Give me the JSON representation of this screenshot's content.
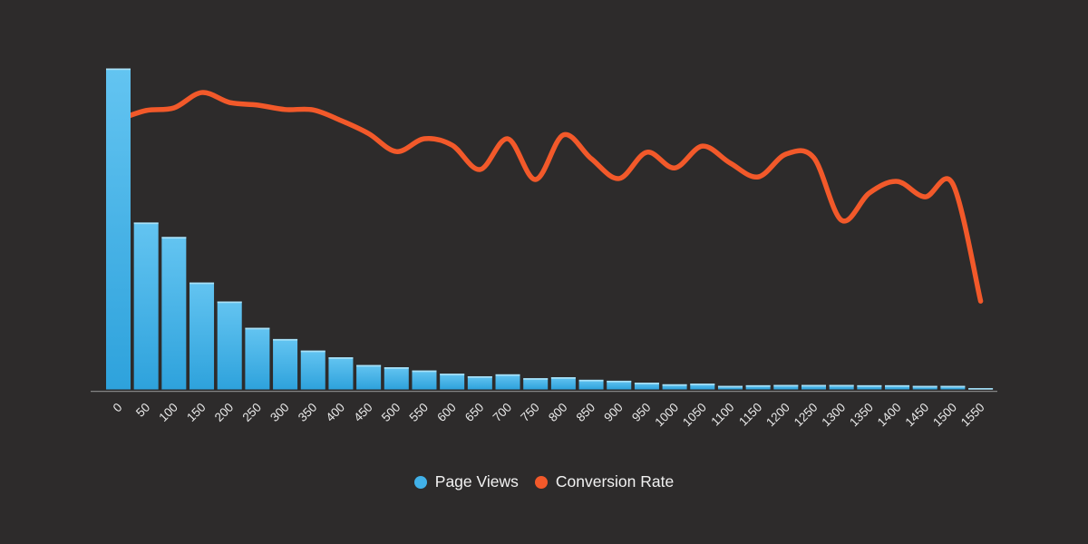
{
  "chart_data": {
    "type": "combo",
    "title": "",
    "xlabel": "",
    "ylabel": "",
    "grid": false,
    "y_axis_visible": false,
    "legend_position": "bottom",
    "ylim": [
      0,
      105
    ],
    "background": "#2d2b2b",
    "axis_line_color": "#939393",
    "tick_label_color": "#e8e8e8",
    "legend_text_color": "#f2f2f2",
    "bar_gradient_top": "#63c4f1",
    "bar_gradient_bottom": "#2ea2dc",
    "bar_cap_color": "#b5e6f9",
    "categories": [
      "0",
      "50",
      "100",
      "150",
      "200",
      "250",
      "300",
      "350",
      "400",
      "450",
      "500",
      "550",
      "600",
      "650",
      "700",
      "750",
      "800",
      "850",
      "900",
      "950",
      "1000",
      "1050",
      "1100",
      "1150",
      "1200",
      "1250",
      "1300",
      "1350",
      "1400",
      "1450",
      "1500",
      "1550"
    ],
    "series": [
      {
        "name": "Page Views",
        "type": "bar",
        "color": "#41b1e8",
        "values": [
          100,
          52,
          47.5,
          33.3,
          27.4,
          19.2,
          15.7,
          12.1,
          10,
          7.6,
          6.9,
          5.9,
          4.9,
          4.1,
          4.7,
          3.5,
          3.8,
          3.0,
          2.7,
          2.1,
          1.6,
          1.8,
          1.1,
          1.3,
          1.4,
          1.4,
          1.4,
          1.3,
          1.3,
          1.1,
          1.1,
          0.4
        ]
      },
      {
        "name": "Conversion Rate",
        "type": "line",
        "color": "#f2592a",
        "values": [
          84.0,
          86.9,
          87.7,
          92.5,
          89.4,
          88.6,
          87.2,
          87.1,
          83.8,
          79.7,
          74.1,
          78.1,
          76.1,
          68.5,
          78.1,
          65.4,
          79.3,
          71.9,
          65.7,
          73.9,
          69.0,
          75.8,
          70.5,
          66.2,
          73.3,
          72.2,
          52.7,
          61.2,
          64.8,
          60.0,
          64.0,
          27.5
        ]
      }
    ]
  }
}
